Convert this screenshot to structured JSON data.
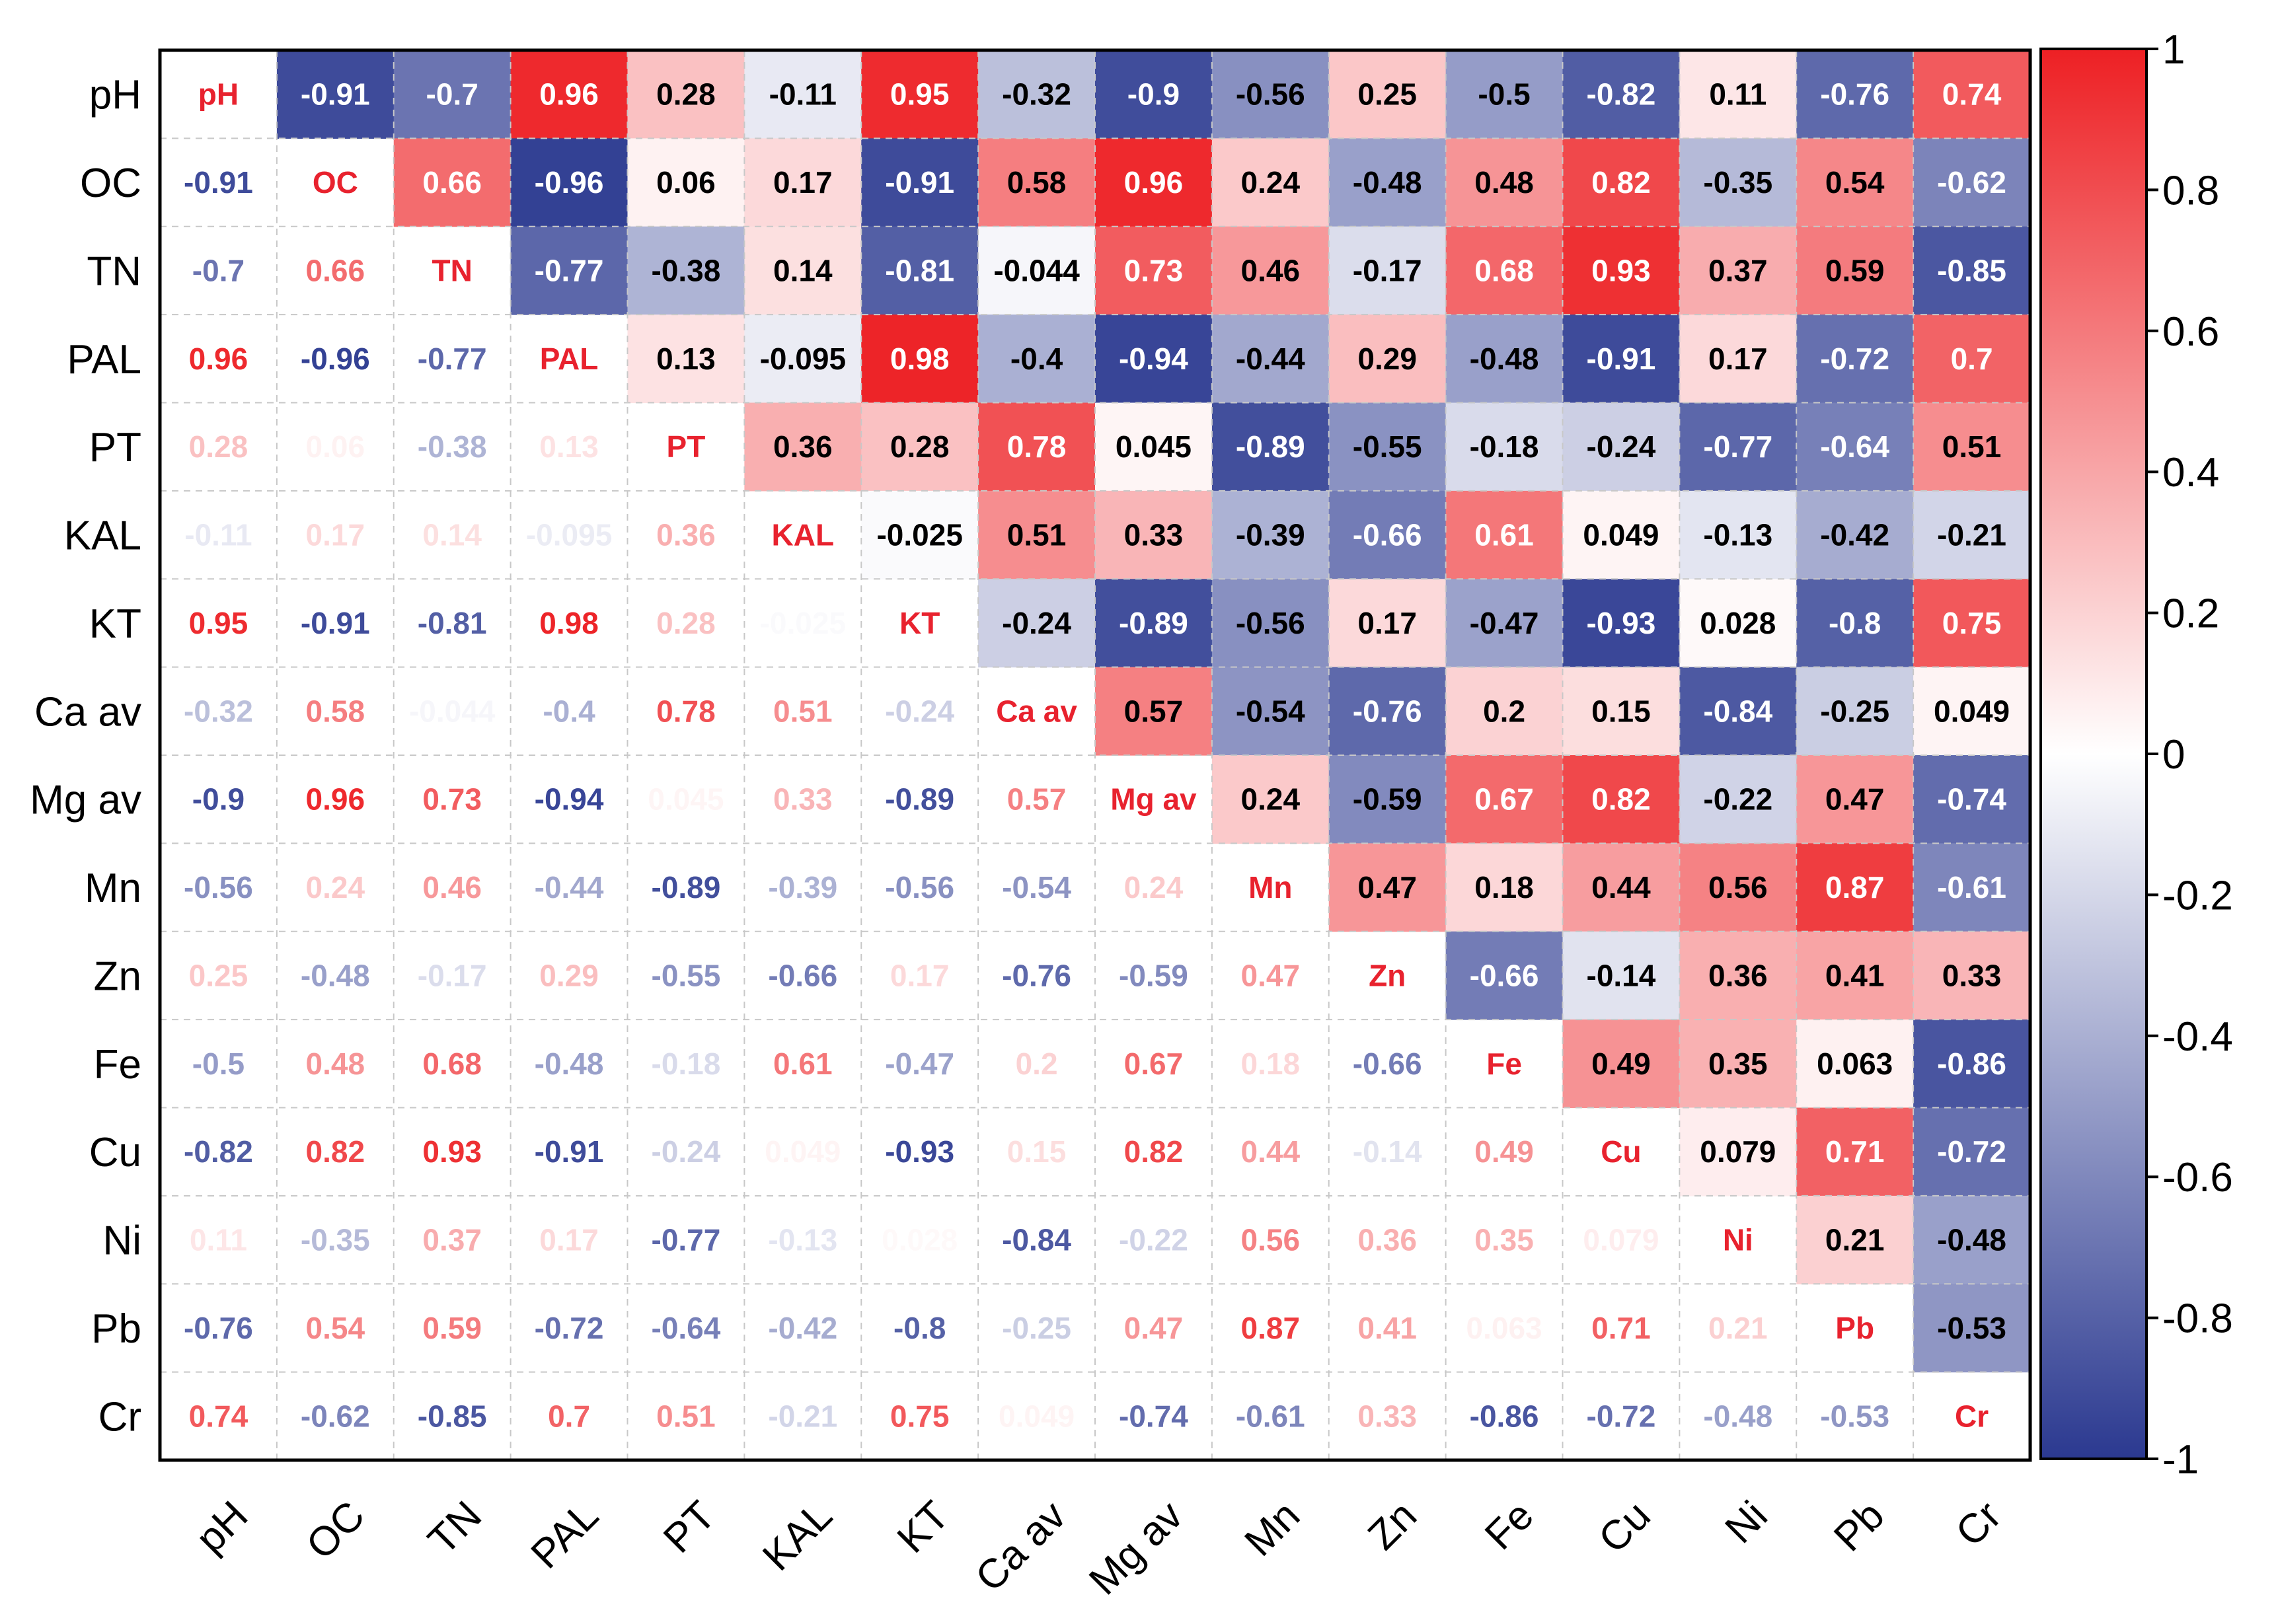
{
  "chart_data": {
    "type": "heatmap",
    "title": "",
    "variables": [
      "pH",
      "OC",
      "TN",
      "PAL",
      "PT",
      "KAL",
      "KT",
      "Ca av",
      "Mg av",
      "Mn",
      "Zn",
      "Fe",
      "Cu",
      "Ni",
      "Pb",
      "Cr"
    ],
    "upper_triangle_labels": [
      [
        "pH",
        "-0.91",
        "-0.7",
        "0.96",
        "0.28",
        "-0.11",
        "0.95",
        "-0.32",
        "-0.9",
        "-0.56",
        "0.25",
        "-0.5",
        "-0.82",
        "0.11",
        "-0.76",
        "0.74"
      ],
      [
        "",
        "OC",
        "0.66",
        "-0.96",
        "0.06",
        "0.17",
        "-0.91",
        "0.58",
        "0.96",
        "0.24",
        "-0.48",
        "0.48",
        "0.82",
        "-0.35",
        "0.54",
        "-0.62"
      ],
      [
        "",
        "",
        "TN",
        "-0.77",
        "-0.38",
        "0.14",
        "-0.81",
        "-0.044",
        "0.73",
        "0.46",
        "-0.17",
        "0.68",
        "0.93",
        "0.37",
        "0.59",
        "-0.85"
      ],
      [
        "",
        "",
        "",
        "PAL",
        "0.13",
        "-0.095",
        "0.98",
        "-0.4",
        "-0.94",
        "-0.44",
        "0.29",
        "-0.48",
        "-0.91",
        "0.17",
        "-0.72",
        "0.7"
      ],
      [
        "",
        "",
        "",
        "",
        "PT",
        "0.36",
        "0.28",
        "0.78",
        "0.045",
        "-0.89",
        "-0.55",
        "-0.18",
        "-0.24",
        "-0.77",
        "-0.64",
        "0.51"
      ],
      [
        "",
        "",
        "",
        "",
        "",
        "KAL",
        "-0.025",
        "0.51",
        "0.33",
        "-0.39",
        "-0.66",
        "0.61",
        "0.049",
        "-0.13",
        "-0.42",
        "-0.21"
      ],
      [
        "",
        "",
        "",
        "",
        "",
        "",
        "KT",
        "-0.24",
        "-0.89",
        "-0.56",
        "0.17",
        "-0.47",
        "-0.93",
        "0.028",
        "-0.8",
        "0.75"
      ],
      [
        "",
        "",
        "",
        "",
        "",
        "",
        "",
        "Ca av",
        "0.57",
        "-0.54",
        "-0.76",
        "0.2",
        "0.15",
        "-0.84",
        "-0.25",
        "0.049"
      ],
      [
        "",
        "",
        "",
        "",
        "",
        "",
        "",
        "",
        "Mg av",
        "0.24",
        "-0.59",
        "0.67",
        "0.82",
        "-0.22",
        "0.47",
        "-0.74"
      ],
      [
        "",
        "",
        "",
        "",
        "",
        "",
        "",
        "",
        "",
        "Mn",
        "0.47",
        "0.18",
        "0.44",
        "0.56",
        "0.87",
        "-0.61"
      ],
      [
        "",
        "",
        "",
        "",
        "",
        "",
        "",
        "",
        "",
        "",
        "Zn",
        "-0.66",
        "-0.14",
        "0.36",
        "0.41",
        "0.33"
      ],
      [
        "",
        "",
        "",
        "",
        "",
        "",
        "",
        "",
        "",
        "",
        "",
        "Fe",
        "0.49",
        "0.35",
        "0.063",
        "-0.86"
      ],
      [
        "",
        "",
        "",
        "",
        "",
        "",
        "",
        "",
        "",
        "",
        "",
        "",
        "Cu",
        "0.079",
        "0.71",
        "-0.72"
      ],
      [
        "",
        "",
        "",
        "",
        "",
        "",
        "",
        "",
        "",
        "",
        "",
        "",
        "",
        "Ni",
        "0.21",
        "-0.48"
      ],
      [
        "",
        "",
        "",
        "",
        "",
        "",
        "",
        "",
        "",
        "",
        "",
        "",
        "",
        "",
        "Pb",
        "-0.53"
      ],
      [
        "",
        "",
        "",
        "",
        "",
        "",
        "",
        "",
        "",
        "",
        "",
        "",
        "",
        "",
        "",
        "Cr"
      ]
    ],
    "lower_triangle_labels": [
      [
        "",
        "",
        "",
        "",
        "",
        "",
        "",
        "",
        "",
        "",
        "",
        "",
        "",
        "",
        "",
        ""
      ],
      [
        "-0.91",
        "",
        "",
        "",
        "",
        "",
        "",
        "",
        "",
        "",
        "",
        "",
        "",
        "",
        "",
        ""
      ],
      [
        "-0.7",
        "0.66",
        "",
        "",
        "",
        "",
        "",
        "",
        "",
        "",
        "",
        "",
        "",
        "",
        "",
        ""
      ],
      [
        "0.96",
        "-0.96",
        "-0.77",
        "",
        "",
        "",
        "",
        "",
        "",
        "",
        "",
        "",
        "",
        "",
        "",
        ""
      ],
      [
        "0.28",
        "0.06",
        "-0.38",
        "0.13",
        "",
        "",
        "",
        "",
        "",
        "",
        "",
        "",
        "",
        "",
        "",
        ""
      ],
      [
        "-0.11",
        "0.17",
        "0.14",
        "-0.095",
        "0.36",
        "",
        "",
        "",
        "",
        "",
        "",
        "",
        "",
        "",
        "",
        ""
      ],
      [
        "0.95",
        "-0.91",
        "-0.81",
        "0.98",
        "0.28",
        "-0.025",
        "",
        "",
        "",
        "",
        "",
        "",
        "",
        "",
        "",
        ""
      ],
      [
        "-0.32",
        "0.58",
        "-0.044",
        "-0.4",
        "0.78",
        "0.51",
        "-0.24",
        "",
        "",
        "",
        "",
        "",
        "",
        "",
        "",
        ""
      ],
      [
        "-0.9",
        "0.96",
        "0.73",
        "-0.94",
        "0.045",
        "0.33",
        "-0.89",
        "0.57",
        "",
        "",
        "",
        "",
        "",
        "",
        "",
        ""
      ],
      [
        "-0.56",
        "0.24",
        "0.46",
        "-0.44",
        "-0.89",
        "-0.39",
        "-0.56",
        "-0.54",
        "0.24",
        "",
        "",
        "",
        "",
        "",
        "",
        ""
      ],
      [
        "0.25",
        "-0.48",
        "-0.17",
        "0.29",
        "-0.55",
        "-0.66",
        "0.17",
        "-0.76",
        "-0.59",
        "0.47",
        "",
        "",
        "",
        "",
        "",
        ""
      ],
      [
        "-0.5",
        "0.48",
        "0.68",
        "-0.48",
        "-0.18",
        "0.61",
        "-0.47",
        "0.2",
        "0.67",
        "0.18",
        "-0.66",
        "",
        "",
        "",
        "",
        ""
      ],
      [
        "-0.82",
        "0.82",
        "0.93",
        "-0.91",
        "-0.24",
        "0.049",
        "-0.93",
        "0.15",
        "0.82",
        "0.44",
        "-0.14",
        "0.49",
        "",
        "",
        "",
        ""
      ],
      [
        "0.11",
        "-0.35",
        "0.37",
        "0.17",
        "-0.77",
        "-0.13",
        "0.028",
        "-0.84",
        "-0.22",
        "0.56",
        "0.36",
        "0.35",
        "0.079",
        "",
        "",
        ""
      ],
      [
        "-0.76",
        "0.54",
        "0.59",
        "-0.72",
        "-0.64",
        "-0.42",
        "-0.8",
        "-0.25",
        "0.47",
        "0.87",
        "0.41",
        "0.063",
        "0.71",
        "0.21",
        "",
        ""
      ],
      [
        "0.74",
        "-0.62",
        "-0.85",
        "0.7",
        "0.51",
        "-0.21",
        "0.75",
        "0.049",
        "-0.74",
        "-0.61",
        "0.33",
        "-0.86",
        "-0.72",
        "-0.48",
        "-0.53",
        ""
      ]
    ],
    "colorbar": {
      "range": [
        -1,
        1
      ],
      "tick_labels": [
        "1",
        "0.8",
        "0.6",
        "0.4",
        "0.2",
        "0",
        "-0.2",
        "-0.4",
        "-0.6",
        "-0.8",
        "-1"
      ],
      "colors": {
        "negative": "#2b3990",
        "zero": "#ffffff",
        "positive": "#ed2024"
      }
    },
    "grid": true,
    "legend": "right"
  }
}
